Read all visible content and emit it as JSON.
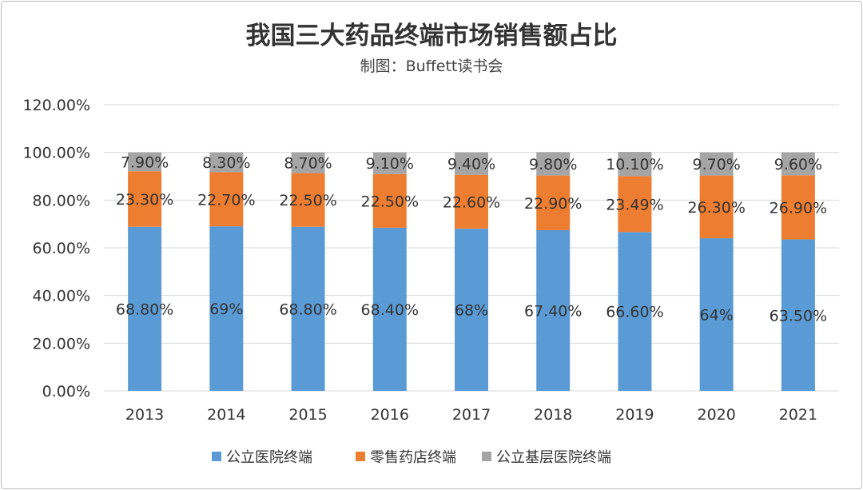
{
  "chart_data": {
    "type": "bar",
    "stacked": true,
    "title": "我国三大药品终端市场销售额占比",
    "subtitle": "制图：Buffett读书会",
    "categories": [
      "2013",
      "2014",
      "2015",
      "2016",
      "2017",
      "2018",
      "2019",
      "2020",
      "2021"
    ],
    "series": [
      {
        "name": "公立医院终端",
        "color": "#5b9bd5",
        "values": [
          68.8,
          69,
          68.8,
          68.4,
          68,
          67.4,
          66.6,
          64,
          63.5
        ],
        "labels": [
          "68.80%",
          "69%",
          "68.80%",
          "68.40%",
          "68%",
          "67.40%",
          "66.60%",
          "64%",
          "63.50%"
        ]
      },
      {
        "name": "零售药店终端",
        "color": "#ed7d31",
        "values": [
          23.3,
          22.7,
          22.5,
          22.5,
          22.6,
          22.9,
          23.49,
          26.3,
          26.9
        ],
        "labels": [
          "23.30%",
          "22.70%",
          "22.50%",
          "22.50%",
          "22.60%",
          "22.90%",
          "23.49%",
          "26.30%",
          "26.90%"
        ]
      },
      {
        "name": "公立基层医院终端",
        "color": "#a5a5a5",
        "values": [
          7.9,
          8.3,
          8.7,
          9.1,
          9.4,
          9.8,
          10.1,
          9.7,
          9.6
        ],
        "labels": [
          "7.90%",
          "8.30%",
          "8.70%",
          "9.10%",
          "9.40%",
          "9.80%",
          "10.10%",
          "9.70%",
          "9.60%"
        ]
      }
    ],
    "yticks": [
      "0.00%",
      "20.00%",
      "40.00%",
      "60.00%",
      "80.00%",
      "100.00%",
      "120.00%"
    ],
    "ylim": [
      0,
      120
    ],
    "grid": true,
    "legend_position": "bottom"
  }
}
